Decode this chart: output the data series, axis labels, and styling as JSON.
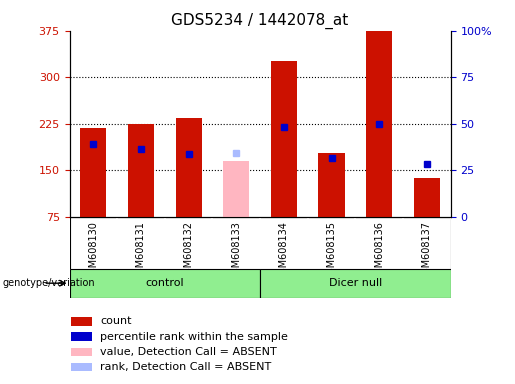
{
  "title": "GDS5234 / 1442078_at",
  "samples": [
    "GSM608130",
    "GSM608131",
    "GSM608132",
    "GSM608133",
    "GSM608134",
    "GSM608135",
    "GSM608136",
    "GSM608137"
  ],
  "red_values": [
    218,
    224,
    234,
    null,
    326,
    178,
    375,
    137
  ],
  "blue_values": [
    193,
    185,
    177,
    null,
    220,
    170,
    225,
    160
  ],
  "pink_value": 165,
  "pink_index": 3,
  "lightblue_value": 178,
  "lightblue_index": 3,
  "ylim_left": [
    75,
    375
  ],
  "ylim_right": [
    0,
    100
  ],
  "left_ticks": [
    75,
    150,
    225,
    300,
    375
  ],
  "right_ticks": [
    0,
    25,
    50,
    75,
    100
  ],
  "right_tick_labels": [
    "0",
    "25",
    "50",
    "75",
    "100%"
  ],
  "bar_width": 0.55,
  "bg_color": "#d3d3d3",
  "plot_bg_color": "#ffffff",
  "red_color": "#cc1100",
  "blue_color": "#0000cc",
  "pink_color": "#ffb6c1",
  "lightblue_color": "#aabbff",
  "green_color": "#90EE90",
  "group_label_fontsize": 8,
  "tick_fontsize": 8,
  "title_fontsize": 11,
  "legend_fontsize": 8
}
